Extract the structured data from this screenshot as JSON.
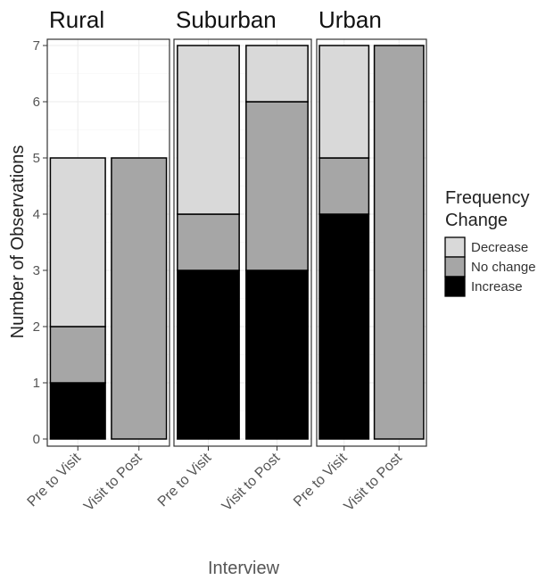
{
  "chart_data": {
    "type": "bar",
    "stacked": true,
    "facets": [
      "Rural",
      "Suburban",
      "Urban"
    ],
    "categories": [
      "Pre to Visit",
      "Visit to Post"
    ],
    "series": [
      {
        "name": "Increase",
        "color": "#000000",
        "values": {
          "Rural": [
            1,
            0
          ],
          "Suburban": [
            3,
            3
          ],
          "Urban": [
            4,
            0
          ]
        }
      },
      {
        "name": "No change",
        "color": "#a6a6a6",
        "values": {
          "Rural": [
            1,
            5
          ],
          "Suburban": [
            1,
            3
          ],
          "Urban": [
            1,
            7
          ]
        }
      },
      {
        "name": "Decrease",
        "color": "#d9d9d9",
        "values": {
          "Rural": [
            3,
            0
          ],
          "Suburban": [
            3,
            1
          ],
          "Urban": [
            2,
            0
          ]
        }
      }
    ],
    "xlabel": "Interview",
    "ylabel": "Number of Observations",
    "ylim": [
      0,
      7
    ],
    "yticks": [
      0,
      1,
      2,
      3,
      4,
      5,
      6,
      7
    ],
    "grid": true,
    "legend": {
      "title": "Frequency Change",
      "title_lines": [
        "Frequency",
        "Change"
      ],
      "order": [
        "Decrease",
        "No change",
        "Increase"
      ],
      "placement": "right"
    }
  }
}
